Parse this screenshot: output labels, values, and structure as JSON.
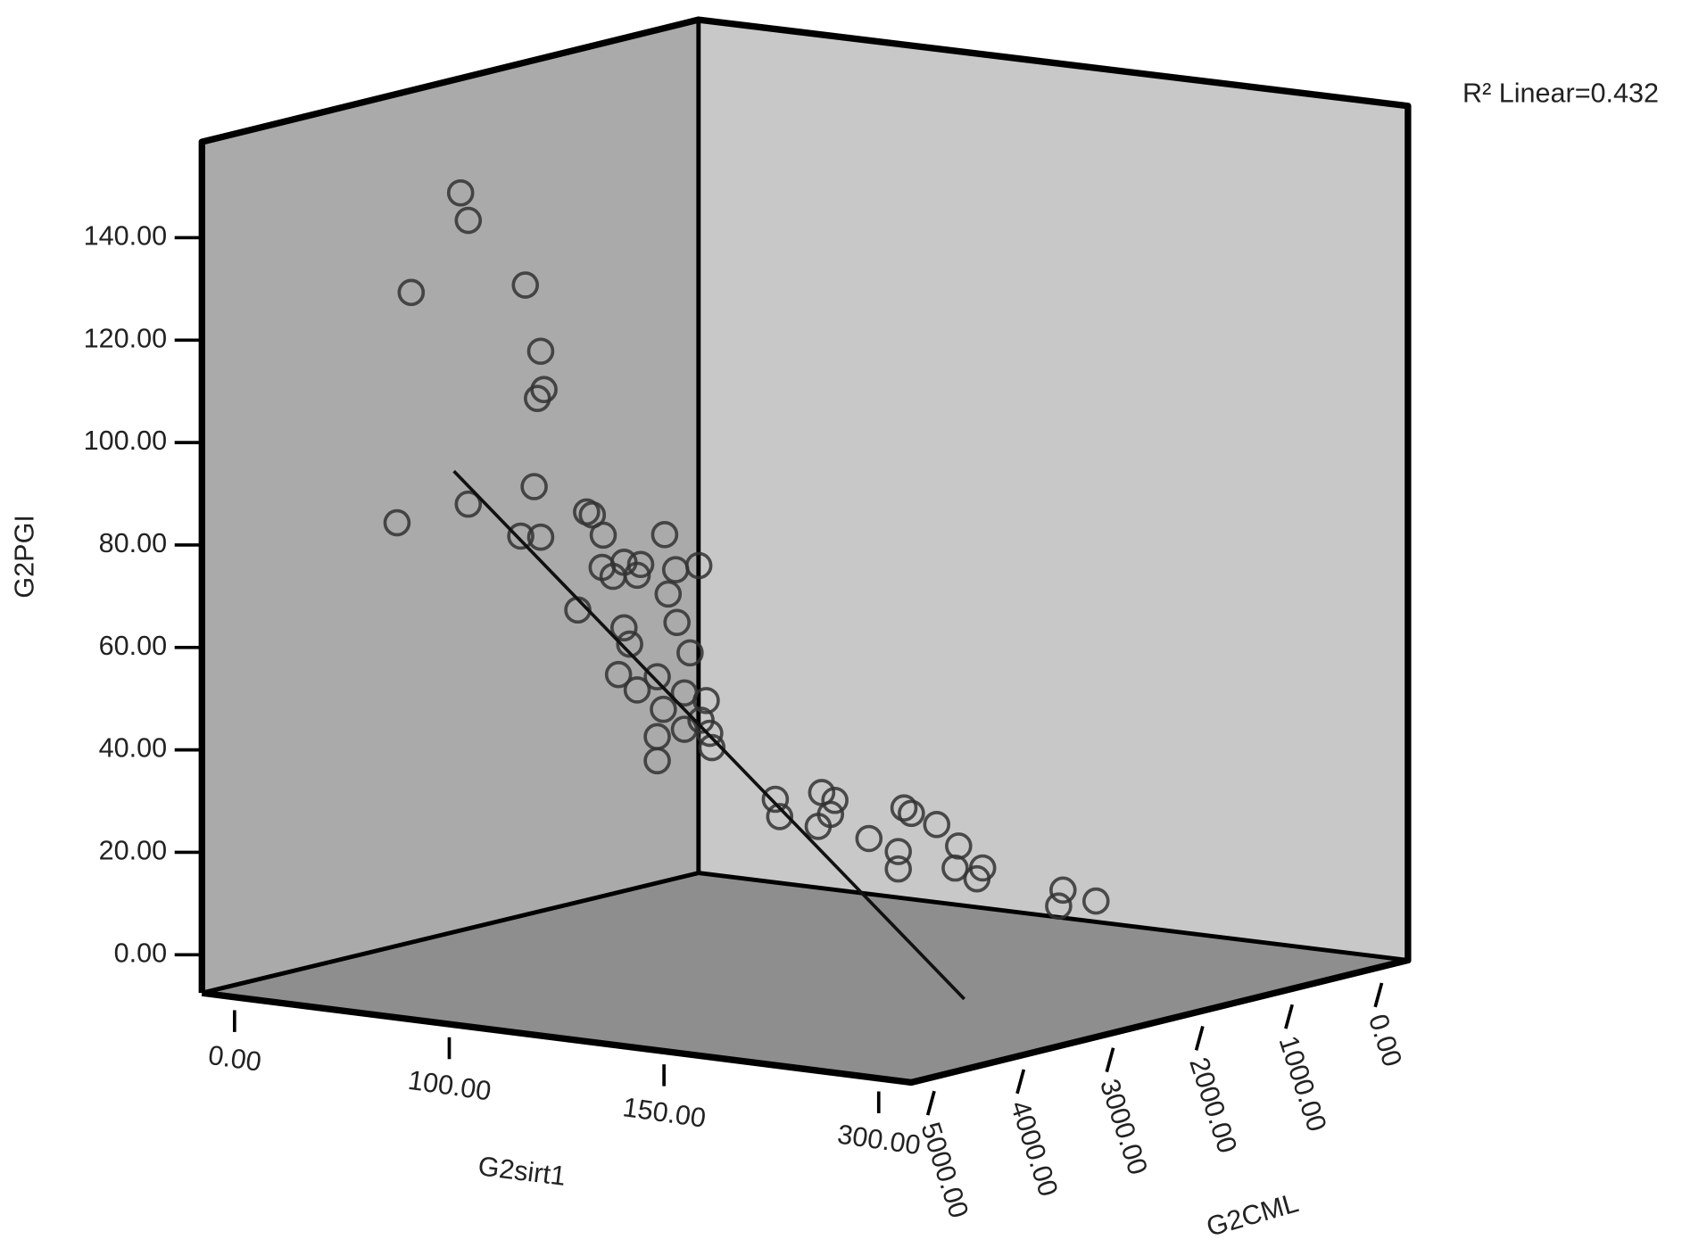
{
  "chart_data": {
    "type": "scatter3d",
    "annotation": "R² Linear=0.432",
    "x_label": "G2sirt1",
    "y_label": "G2PGI",
    "z_label": "G2CML",
    "xlim": [
      -15.3,
      327
    ],
    "xticks": [
      {
        "value": 0,
        "label": "0.00"
      },
      {
        "value": 100,
        "label": "100.00"
      },
      {
        "value": 150,
        "label": "150.00"
      },
      {
        "value": 300,
        "label": "300.00"
      }
    ],
    "ylim": [
      -7.46,
      158.7
    ],
    "yticks": [
      {
        "value": 0,
        "label": "0.00"
      },
      {
        "value": 20,
        "label": "20.00"
      },
      {
        "value": 40,
        "label": "40.00"
      },
      {
        "value": 60,
        "label": "60.00"
      },
      {
        "value": 80,
        "label": "80.00"
      },
      {
        "value": 100,
        "label": "100.00"
      },
      {
        "value": 120,
        "label": "120.00"
      },
      {
        "value": 140,
        "label": "140.00"
      }
    ],
    "zlim": [
      -244,
      5305
    ],
    "zticks": [
      {
        "value": 0,
        "label": "0.00"
      },
      {
        "value": 1000,
        "label": "1000.00"
      },
      {
        "value": 2000,
        "label": "2000.00"
      },
      {
        "value": 3000,
        "label": "3000.00"
      },
      {
        "value": 4000,
        "label": "4000.00"
      },
      {
        "value": 5000,
        "label": "5000.00"
      }
    ],
    "marker_color": "#333333",
    "x": [
      55.9,
      58.0,
      42.3,
      73.7,
      77.9,
      78.8,
      77.0,
      76.1,
      38.4,
      58.0,
      72.4,
      77.9,
      90.5,
      92.1,
      95.1,
      106.0,
      88.1,
      94.8,
      97.8,
      100.4,
      102.7,
      102.2,
      107.5,
      110.7,
      106.5,
      107.7,
      100.4,
      101.2,
      109.5,
      99.3,
      105.0,
      102.2,
      105.8,
      108.7,
      111.7,
      111.0,
      105.0,
      108.7,
      112.2,
      112.5,
      105.0,
      121.2,
      121.8,
      127.6,
      129.4,
      128.8,
      127.1,
      134.1,
      138.9,
      139.9,
      143.4,
      138.1,
      138.1,
      146.4,
      145.9,
      149.7,
      148.9,
      182.3,
      180.5,
      195.9
    ],
    "y": [
      147.5,
      142.1,
      128.3,
      129.2,
      116.2,
      108.7,
      107.0,
      89.8,
      83.4,
      86.7,
      80.2,
      79.9,
      84.6,
      84.0,
      80.0,
      79.8,
      65.5,
      73.7,
      71.9,
      74.6,
      74.1,
      72.0,
      72.9,
      73.6,
      68.2,
      62.6,
      61.8,
      58.6,
      56.6,
      52.7,
      52.1,
      49.6,
      45.7,
      48.8,
      47.2,
      43.4,
      40.4,
      41.7,
      40.8,
      38.0,
      35.7,
      27.6,
      24.2,
      28.7,
      27.1,
      24.4,
      22.1,
      19.5,
      25.3,
      24.2,
      21.9,
      16.8,
      13.4,
      17.6,
      13.3,
      13.2,
      11.1,
      8.5,
      5.4,
      6.2
    ],
    "z": [
      4120,
      4085,
      4346,
      3824,
      3753,
      3738,
      3768,
      3783,
      4411,
      4085,
      3844,
      3753,
      3543,
      3517,
      3467,
      3186,
      3583,
      3472,
      3422,
      3372,
      3296,
      3311,
      3135,
      3030,
      3171,
      3130,
      3372,
      3347,
      3070,
      3397,
      3221,
      3311,
      3191,
      3095,
      2995,
      3020,
      3221,
      3095,
      2980,
      2970,
      3221,
      2679,
      2659,
      2468,
      2407,
      2427,
      2483,
      2252,
      2091,
      2056,
      1941,
      2116,
      2116,
      1840,
      1855,
      1730,
      1755,
      1363,
      1383,
      1212
    ],
    "fit_line": {
      "color": "#111111",
      "x": [
        54.0,
        147.2
      ],
      "y": [
        93.2,
        -12.3
      ],
      "z": [
        4150,
        1815
      ]
    }
  }
}
